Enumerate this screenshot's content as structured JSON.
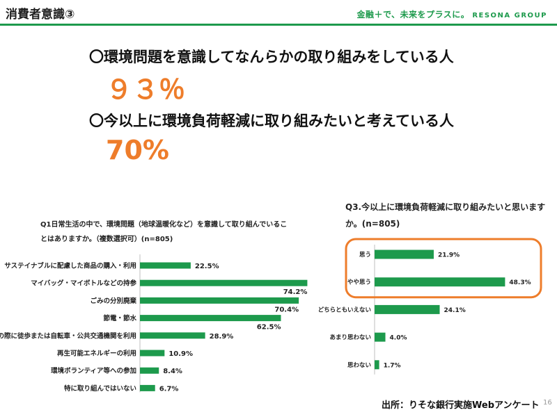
{
  "header": {
    "title": "消費者意識③",
    "brand_tagline": "金融＋で、未来をプラスに。",
    "brand_group": "RESONA GROUP"
  },
  "statements": [
    {
      "text": "〇環境問題を意識してなんらかの取り組みをしている人",
      "value": "９３％"
    },
    {
      "text": "〇今以上に環境負荷軽減に取り組みたいと考えている人",
      "value": "70%"
    }
  ],
  "q1": {
    "title": "Q1日常生活の中で、環境問題（地球温暖化など）を意識して取り組んでいることはありますか。（複数選択可）(n=805)"
  },
  "q3": {
    "title": "Q3.今以上に環境負荷軽減に取り組みたいと思いますか。(n=805)"
  },
  "chart_data": [
    {
      "type": "bar",
      "orientation": "horizontal",
      "title": "Q1日常生活の中で、環境問題（地球温暖化など）を意識して取り組んでいることはありますか。（複数選択可）(n=805)",
      "categories": [
        "サステイナブルに配慮した商品の購入・利用",
        "マイバッグ・マイボトルなどの持参",
        "ごみの分別廃棄",
        "節電・節水",
        "移動の際に徒歩または自転車・公共交通機関を利用",
        "再生可能エネルギーの利用",
        "環境ボランティア等への参加",
        "特に取り組んではいない"
      ],
      "values": [
        22.5,
        74.2,
        70.4,
        62.5,
        28.9,
        10.9,
        8.4,
        6.7
      ],
      "value_labels": [
        "22.5%",
        "74.2%",
        "70.4%",
        "62.5%",
        "28.9%",
        "10.9%",
        "8.4%",
        "6.7%"
      ],
      "bar_color": "#1d9a4c",
      "grid": false,
      "legend": "none"
    },
    {
      "type": "bar",
      "orientation": "horizontal",
      "title": "Q3.今以上に環境負荷軽減に取り組みたいと思いますか。(n=805)",
      "categories": [
        "思う",
        "やや思う",
        "どちらともいえない",
        "あまり思わない",
        "思わない"
      ],
      "values": [
        21.9,
        48.3,
        24.1,
        4.0,
        1.7
      ],
      "value_labels": [
        "21.9%",
        "48.3%",
        "24.1%",
        "4.0%",
        "1.7%"
      ],
      "bar_color": "#1d9a4c",
      "highlight_color": "#ee7d2b",
      "highlighted_categories": [
        "思う",
        "やや思う"
      ],
      "grid": false,
      "legend": "none"
    }
  ],
  "footer": {
    "source": "出所：りそな銀行実施Webアンケート",
    "page_number": "16"
  }
}
